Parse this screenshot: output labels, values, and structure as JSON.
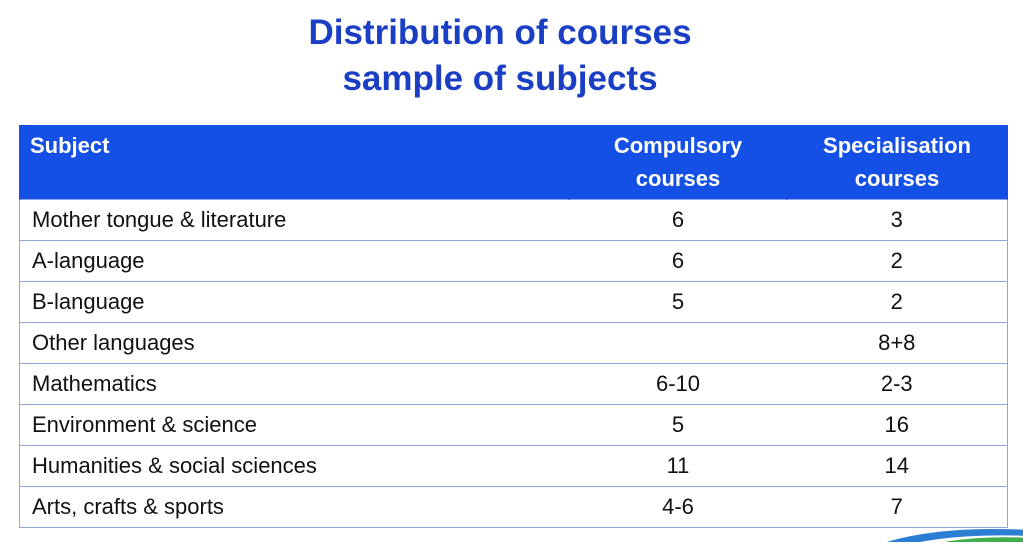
{
  "title": {
    "line1": "Distribution of courses",
    "line2": "sample of subjects"
  },
  "table": {
    "headers": {
      "subject": "Subject",
      "compulsory_line1": "Compulsory",
      "compulsory_line2": "courses",
      "specialisation_line1": "Specialisation",
      "specialisation_line2": "courses"
    },
    "rows": [
      {
        "subject": "Mother tongue & literature",
        "compulsory": "6",
        "specialisation": "3"
      },
      {
        "subject": "A-language",
        "compulsory": "6",
        "specialisation": "2"
      },
      {
        "subject": "B-language",
        "compulsory": "5",
        "specialisation": "2"
      },
      {
        "subject": "Other languages",
        "compulsory": "",
        "specialisation": "8+8"
      },
      {
        "subject": "Mathematics",
        "compulsory": "6-10",
        "specialisation": "2-3"
      },
      {
        "subject": "Environment & science",
        "compulsory": "5",
        "specialisation": "16"
      },
      {
        "subject": "Humanities & social sciences",
        "compulsory": "11",
        "specialisation": "14"
      },
      {
        "subject": "Arts, crafts & sports",
        "compulsory": "4-6",
        "specialisation": "7"
      }
    ]
  },
  "colors": {
    "title": "#1a3fc4",
    "header_background": "#1550e6",
    "row_border": "#8fa6e0"
  }
}
